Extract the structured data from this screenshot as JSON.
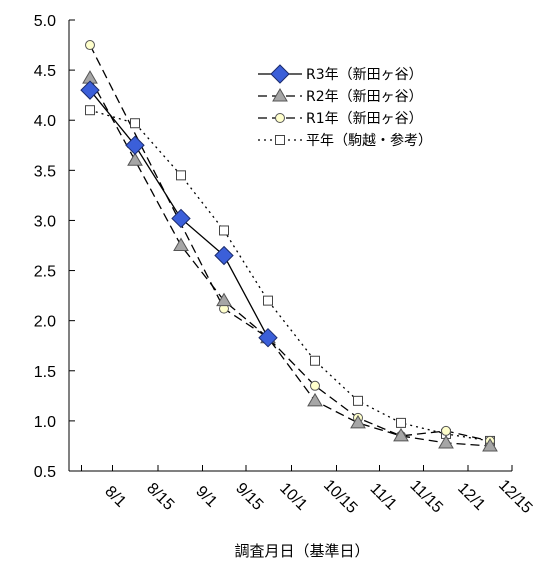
{
  "chart_data": {
    "type": "line",
    "title": "",
    "xlabel": "調査月日（基準日）",
    "ylabel": "",
    "ylim": [
      0.5,
      5.0
    ],
    "yticks": [
      "0.5",
      "1.0",
      "1.5",
      "2.0",
      "2.5",
      "3.0",
      "3.5",
      "4.0",
      "4.5",
      "5.0"
    ],
    "x_tick_labels": [
      "8/1",
      "8/15",
      "9/1",
      "9/15",
      "10/1",
      "10/15",
      "11/1",
      "11/15",
      "12/1",
      "12/15"
    ],
    "grid": false,
    "legend_position": "top-right",
    "series": [
      {
        "name": "R3年（新田ヶ谷）",
        "style": "solid",
        "marker": "diamond",
        "marker_color": "#3b5fd9",
        "x": [
          0,
          1,
          2,
          3,
          4
        ],
        "values": [
          4.3,
          3.75,
          3.02,
          2.65,
          1.83
        ]
      },
      {
        "name": "R2年（新田ヶ谷）",
        "style": "dashed",
        "marker": "triangle",
        "marker_color": "#a6a6a6",
        "x": [
          0,
          1,
          2,
          3,
          4,
          5,
          6,
          7,
          8,
          9
        ],
        "values": [
          4.42,
          3.6,
          2.75,
          2.2,
          1.83,
          1.2,
          0.98,
          0.85,
          0.78,
          0.75
        ]
      },
      {
        "name": "R1年（新田ヶ谷）",
        "style": "dashed",
        "marker": "circle",
        "marker_color": "#ffffcc",
        "x": [
          0,
          3,
          4,
          5,
          6,
          7,
          8,
          9
        ],
        "values": [
          4.75,
          2.12,
          1.83,
          1.35,
          1.03,
          0.85,
          0.9,
          0.8
        ]
      },
      {
        "name": "平年（駒越・参考）",
        "style": "dotted",
        "marker": "square",
        "marker_color": "#ffffff",
        "x": [
          0,
          1,
          2,
          3,
          4,
          5,
          6,
          7,
          8,
          9
        ],
        "values": [
          4.1,
          3.97,
          3.45,
          2.9,
          2.2,
          1.6,
          1.2,
          0.98,
          0.87,
          0.8
        ]
      }
    ]
  }
}
